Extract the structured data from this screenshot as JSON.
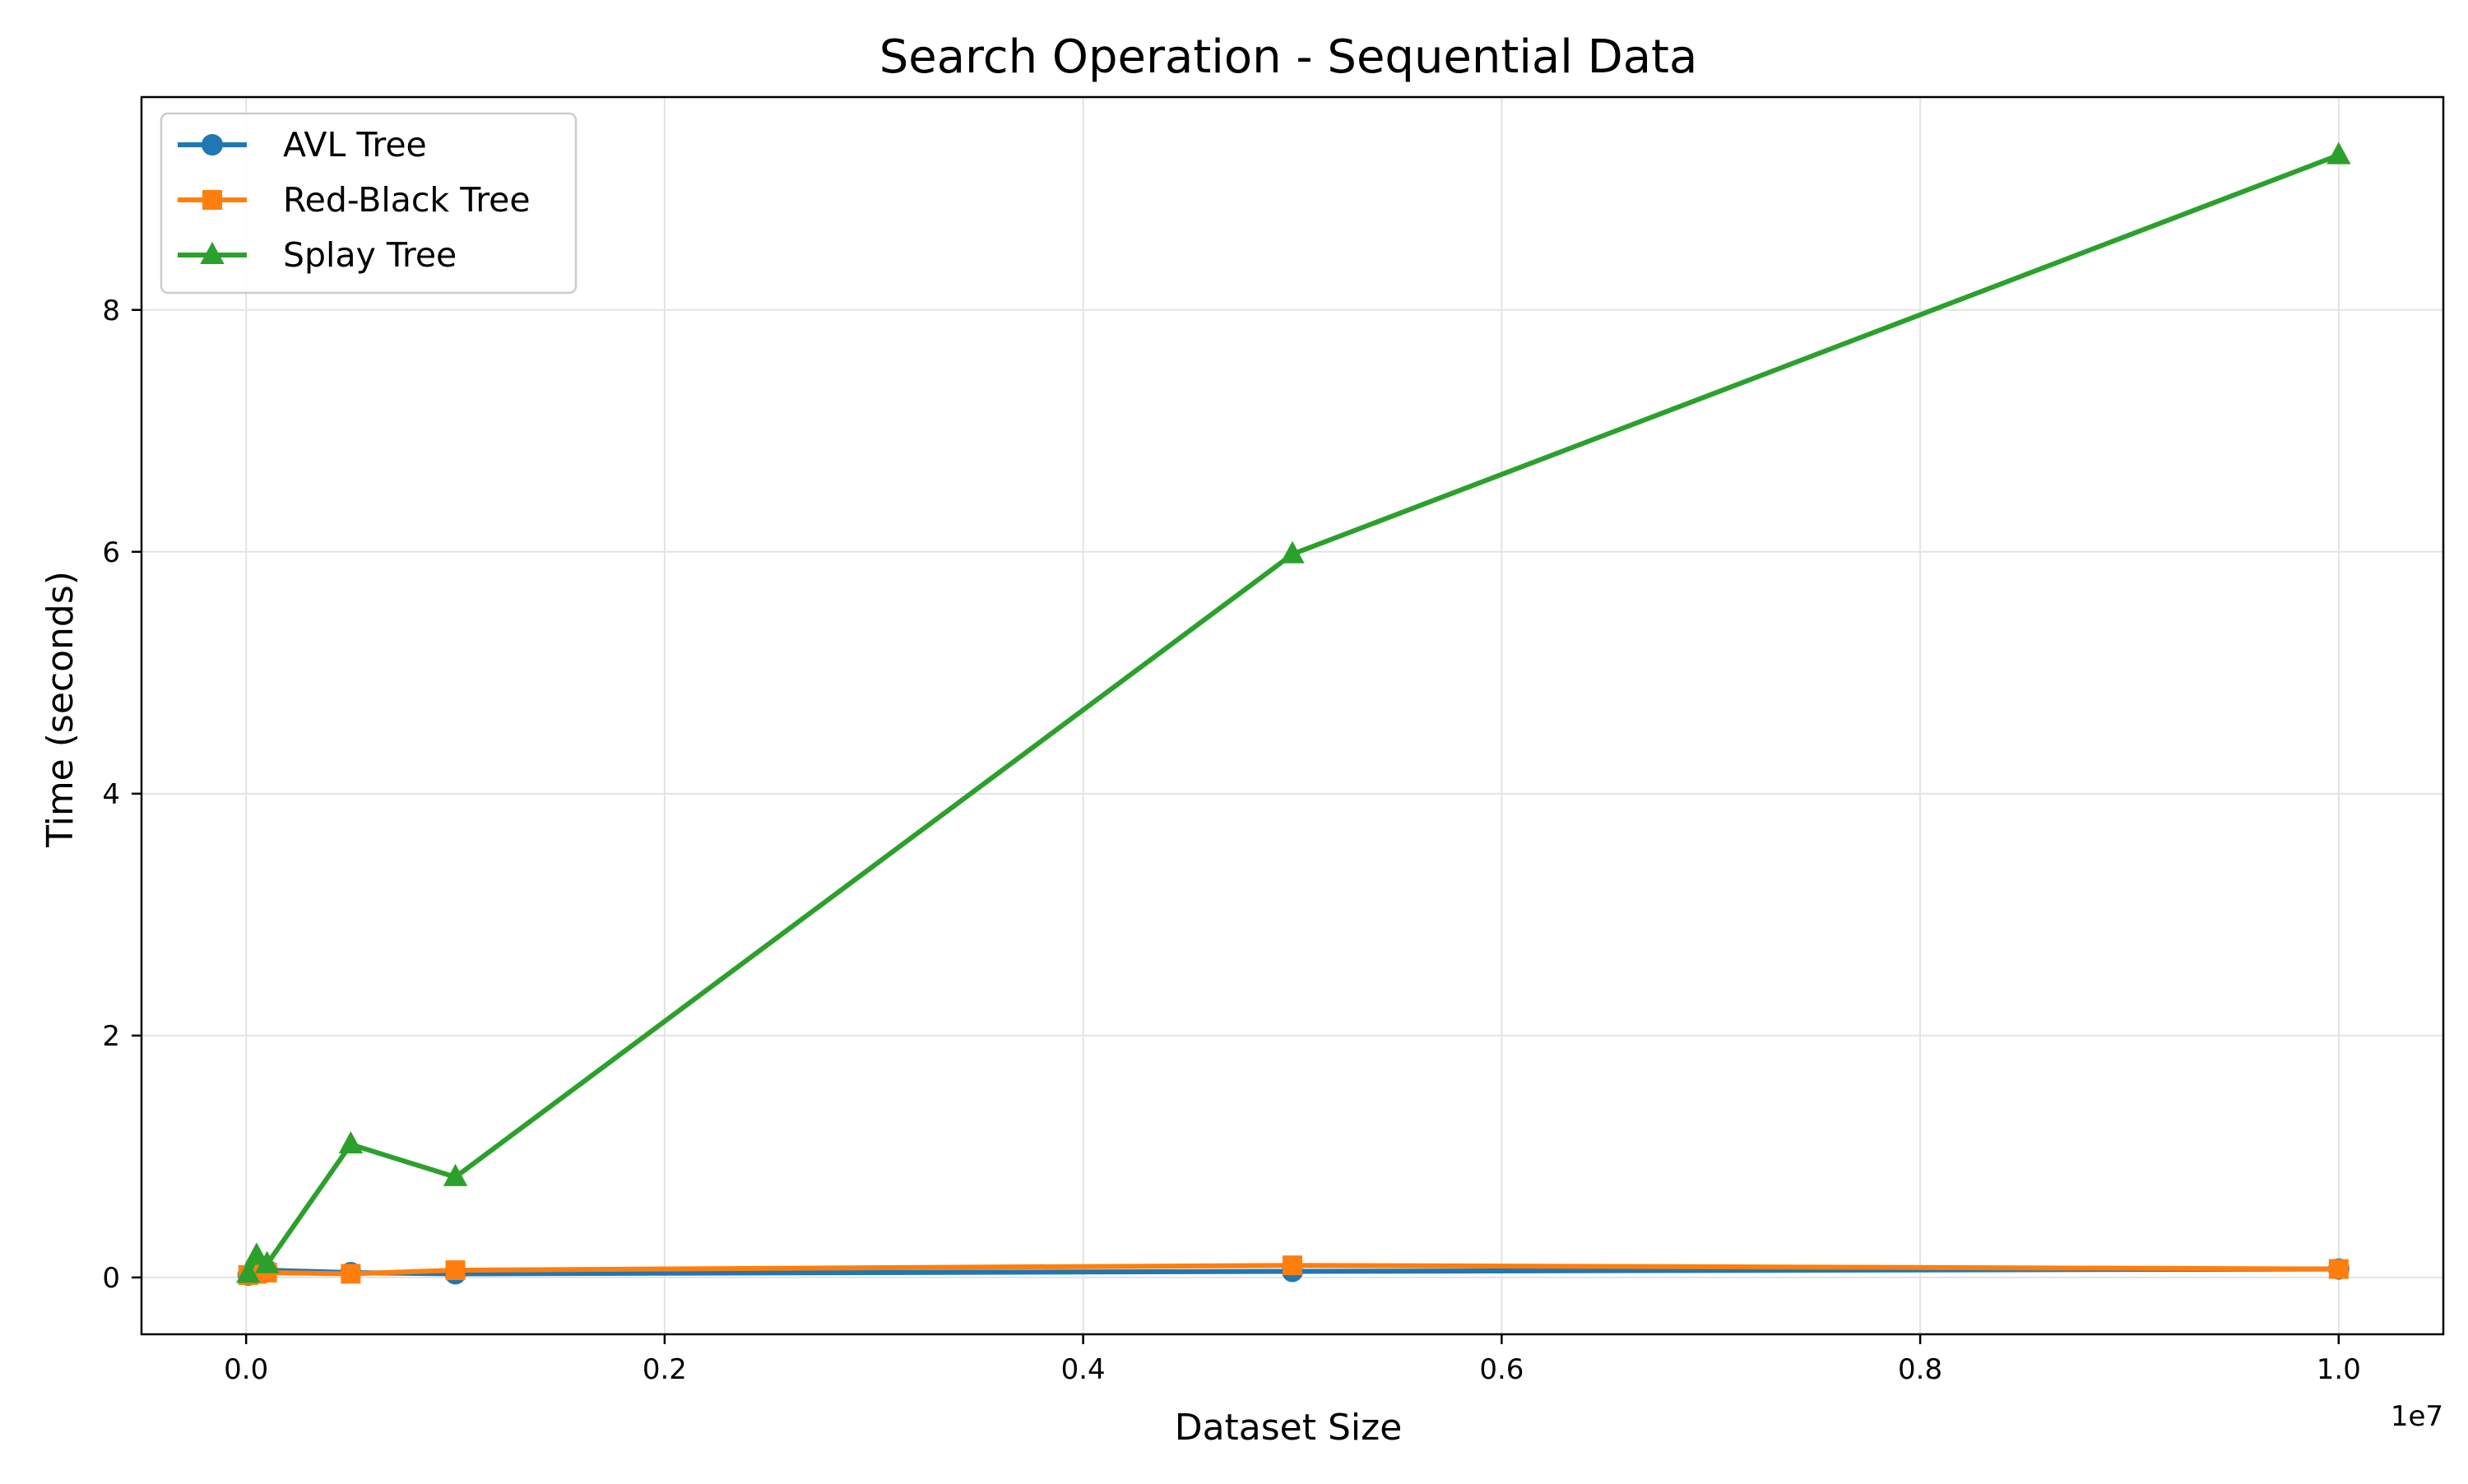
{
  "chart_data": {
    "type": "line",
    "title": "Search Operation - Sequential Data",
    "xlabel": "Dataset Size",
    "ylabel": "Time (seconds)",
    "x_offset_label": "1e7",
    "x_scale_factor": 10000000,
    "xlim": [
      -0.05,
      1.05
    ],
    "ylim": [
      -0.47,
      9.76
    ],
    "grid": true,
    "legend_position": "top-left",
    "x_ticks": [
      {
        "value": 0.0,
        "label": "0.0"
      },
      {
        "value": 0.2,
        "label": "0.2"
      },
      {
        "value": 0.4,
        "label": "0.4"
      },
      {
        "value": 0.6,
        "label": "0.6"
      },
      {
        "value": 0.8,
        "label": "0.8"
      },
      {
        "value": 1.0,
        "label": "1.0"
      }
    ],
    "y_ticks": [
      {
        "value": 0,
        "label": "0"
      },
      {
        "value": 2,
        "label": "2"
      },
      {
        "value": 4,
        "label": "4"
      },
      {
        "value": 6,
        "label": "6"
      },
      {
        "value": 8,
        "label": "8"
      }
    ],
    "x": [
      10000,
      50000,
      100000,
      500000,
      1000000,
      5000000,
      10000000
    ],
    "series": [
      {
        "name": "AVL Tree",
        "color": "#1f77b4",
        "marker": "circle",
        "values": [
          0.02,
          0.04,
          0.06,
          0.04,
          0.03,
          0.05,
          0.07
        ]
      },
      {
        "name": "Red-Black Tree",
        "color": "#ff7f0e",
        "marker": "square",
        "values": [
          0.02,
          0.03,
          0.04,
          0.03,
          0.06,
          0.1,
          0.07
        ]
      },
      {
        "name": "Splay Tree",
        "color": "#2ca02c",
        "marker": "triangle",
        "values": [
          0.03,
          0.18,
          0.11,
          1.1,
          0.83,
          5.98,
          9.28
        ]
      }
    ]
  }
}
